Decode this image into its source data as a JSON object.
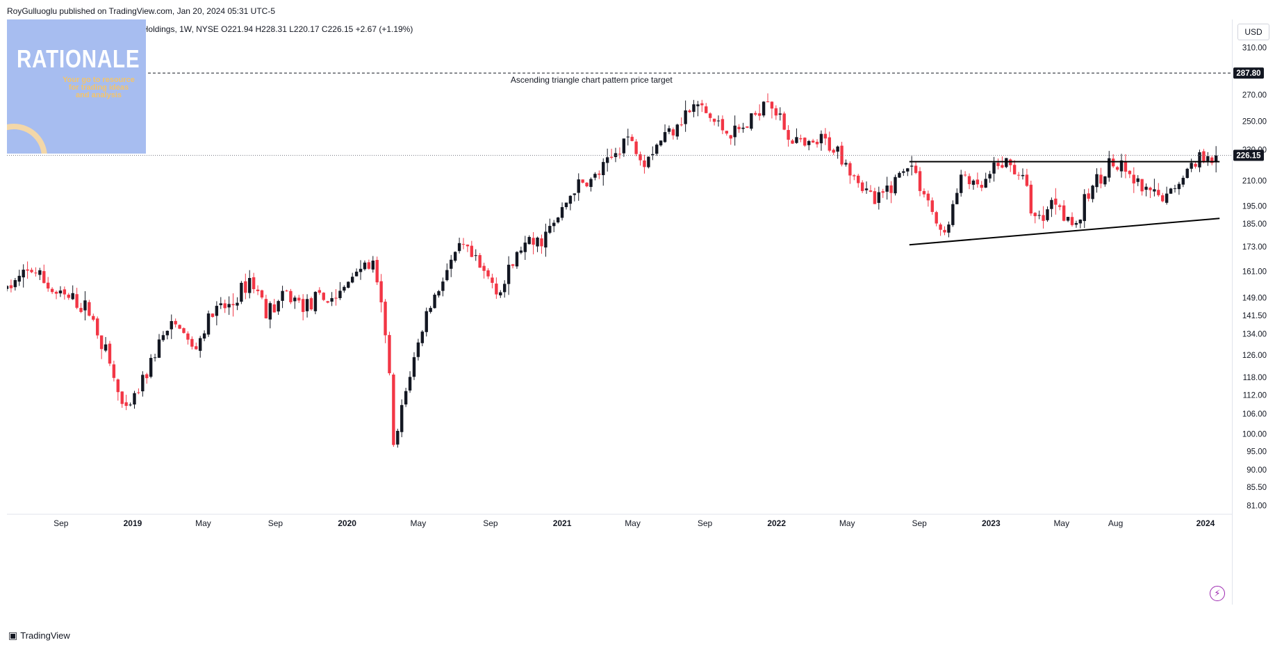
{
  "header": {
    "published": "RoyGulluoglu published on TradingView.com, Jan 20, 2024 05:31 UTC-5",
    "symbol_line": "Laboratory Corporation of America Holdings, 1W, NYSE  O221.94  H228.31  L220.17  C226.15  +2.67 (+1.19%)"
  },
  "logo": {
    "title": "RATIONALE",
    "tagline_1": "Your go to resource",
    "tagline_2": "for trading ideas",
    "tagline_3": "and analysis"
  },
  "currency": "USD",
  "footer": {
    "brand": "TradingView"
  },
  "colors": {
    "up": "#131722",
    "down": "#f23645",
    "grid_line": "#e0e3eb",
    "target_line": "#131722",
    "last_price_badge": "#131722"
  },
  "chart_data": {
    "type": "candlestick",
    "title": "Laboratory Corporation of America Holdings, 1W, NYSE",
    "ohlc_last": {
      "open": 221.94,
      "high": 228.31,
      "low": 220.17,
      "close": 226.15,
      "change": 2.67,
      "change_pct": "+1.19%"
    },
    "y_scale": "log",
    "ylim": [
      79,
      330
    ],
    "y_ticks": [
      310.0,
      270.0,
      250.0,
      230.0,
      210.0,
      195.0,
      185.0,
      173.0,
      161.0,
      149.0,
      141.5,
      134.0,
      126.0,
      118.0,
      112.0,
      106.0,
      100.0,
      95.0,
      90.0,
      85.5,
      81.0
    ],
    "y_tick_labels": [
      "310.00",
      "270.00",
      "250.00",
      "230.00",
      "210.00",
      "195.00",
      "185.00",
      "173.00",
      "161.00",
      "149.00",
      "141.50",
      "134.00",
      "126.00",
      "118.00",
      "112.00",
      "106.00",
      "100.00",
      "95.00",
      "90.00",
      "85.50",
      "81.00"
    ],
    "x_range": [
      "2018-06-01",
      "2024-02-15"
    ],
    "x_ticks": [
      {
        "date": "2018-09-01",
        "label": "Sep",
        "major": false
      },
      {
        "date": "2019-01-01",
        "label": "2019",
        "major": true
      },
      {
        "date": "2019-05-01",
        "label": "May",
        "major": false
      },
      {
        "date": "2019-09-01",
        "label": "Sep",
        "major": false
      },
      {
        "date": "2020-01-01",
        "label": "2020",
        "major": true
      },
      {
        "date": "2020-05-01",
        "label": "May",
        "major": false
      },
      {
        "date": "2020-09-01",
        "label": "Sep",
        "major": false
      },
      {
        "date": "2021-01-01",
        "label": "2021",
        "major": true
      },
      {
        "date": "2021-05-01",
        "label": "May",
        "major": false
      },
      {
        "date": "2021-09-01",
        "label": "Sep",
        "major": false
      },
      {
        "date": "2022-01-01",
        "label": "2022",
        "major": true
      },
      {
        "date": "2022-05-01",
        "label": "May",
        "major": false
      },
      {
        "date": "2022-09-01",
        "label": "Sep",
        "major": false
      },
      {
        "date": "2023-01-01",
        "label": "2023",
        "major": true
      },
      {
        "date": "2023-05-01",
        "label": "May",
        "major": false
      },
      {
        "date": "2023-08-01",
        "label": "Aug",
        "major": false
      },
      {
        "date": "2024-01-01",
        "label": "2024",
        "major": true
      }
    ],
    "price_path": [
      [
        "2018-06-01",
        153
      ],
      [
        "2018-07-15",
        162
      ],
      [
        "2018-08-20",
        151
      ],
      [
        "2018-09-20",
        148
      ],
      [
        "2018-10-20",
        143
      ],
      [
        "2018-11-15",
        128
      ],
      [
        "2018-12-20",
        105
      ],
      [
        "2019-01-25",
        120
      ],
      [
        "2019-02-20",
        133
      ],
      [
        "2019-03-20",
        138
      ],
      [
        "2019-04-15",
        127
      ],
      [
        "2019-05-15",
        142
      ],
      [
        "2019-06-20",
        146
      ],
      [
        "2019-07-20",
        158
      ],
      [
        "2019-08-20",
        143
      ],
      [
        "2019-09-20",
        150
      ],
      [
        "2019-10-20",
        146
      ],
      [
        "2019-11-20",
        148
      ],
      [
        "2019-12-20",
        150
      ],
      [
        "2020-01-20",
        164
      ],
      [
        "2020-02-15",
        163
      ],
      [
        "2020-03-10",
        130
      ],
      [
        "2020-03-20",
        95
      ],
      [
        "2020-04-15",
        118
      ],
      [
        "2020-05-15",
        142
      ],
      [
        "2020-06-15",
        160
      ],
      [
        "2020-07-15",
        173
      ],
      [
        "2020-08-20",
        160
      ],
      [
        "2020-09-20",
        152
      ],
      [
        "2020-10-20",
        172
      ],
      [
        "2020-11-20",
        175
      ],
      [
        "2020-12-20",
        185
      ],
      [
        "2021-01-20",
        205
      ],
      [
        "2021-02-20",
        210
      ],
      [
        "2021-03-20",
        220
      ],
      [
        "2021-04-20",
        240
      ],
      [
        "2021-05-20",
        224
      ],
      [
        "2021-06-20",
        238
      ],
      [
        "2021-07-20",
        252
      ],
      [
        "2021-08-20",
        262
      ],
      [
        "2021-09-20",
        248
      ],
      [
        "2021-10-20",
        240
      ],
      [
        "2021-11-20",
        250
      ],
      [
        "2021-12-15",
        272
      ],
      [
        "2022-01-20",
        240
      ],
      [
        "2022-02-20",
        230
      ],
      [
        "2022-03-20",
        236
      ],
      [
        "2022-04-20",
        228
      ],
      [
        "2022-05-20",
        210
      ],
      [
        "2022-06-20",
        196
      ],
      [
        "2022-07-20",
        210
      ],
      [
        "2022-08-15",
        222
      ],
      [
        "2022-09-20",
        195
      ],
      [
        "2022-10-10",
        176
      ],
      [
        "2022-11-15",
        215
      ],
      [
        "2022-12-10",
        203
      ],
      [
        "2023-01-20",
        222
      ],
      [
        "2023-02-20",
        215
      ],
      [
        "2023-03-20",
        186
      ],
      [
        "2023-04-20",
        200
      ],
      [
        "2023-05-25",
        183
      ],
      [
        "2023-06-20",
        205
      ],
      [
        "2023-07-20",
        221
      ],
      [
        "2023-08-20",
        214
      ],
      [
        "2023-09-20",
        202
      ],
      [
        "2023-10-25",
        199
      ],
      [
        "2023-11-20",
        212
      ],
      [
        "2023-12-20",
        225
      ],
      [
        "2024-01-05",
        228
      ],
      [
        "2024-01-19",
        226.15
      ]
    ],
    "annotations": [
      {
        "type": "horizontal-line",
        "style": "dashed",
        "price": 287.8,
        "label": "Ascending triangle chart pattern price target",
        "price_label": "287.80"
      },
      {
        "type": "trendline",
        "name": "resistance",
        "from": [
          "2022-08-15",
          222
        ],
        "to": [
          "2024-01-25",
          222
        ]
      },
      {
        "type": "trendline",
        "name": "support",
        "from": [
          "2022-08-15",
          174
        ],
        "to": [
          "2024-01-25",
          188
        ]
      },
      {
        "type": "horizontal-line",
        "style": "dotted",
        "price": 226.15,
        "price_label": "226.15"
      }
    ]
  }
}
